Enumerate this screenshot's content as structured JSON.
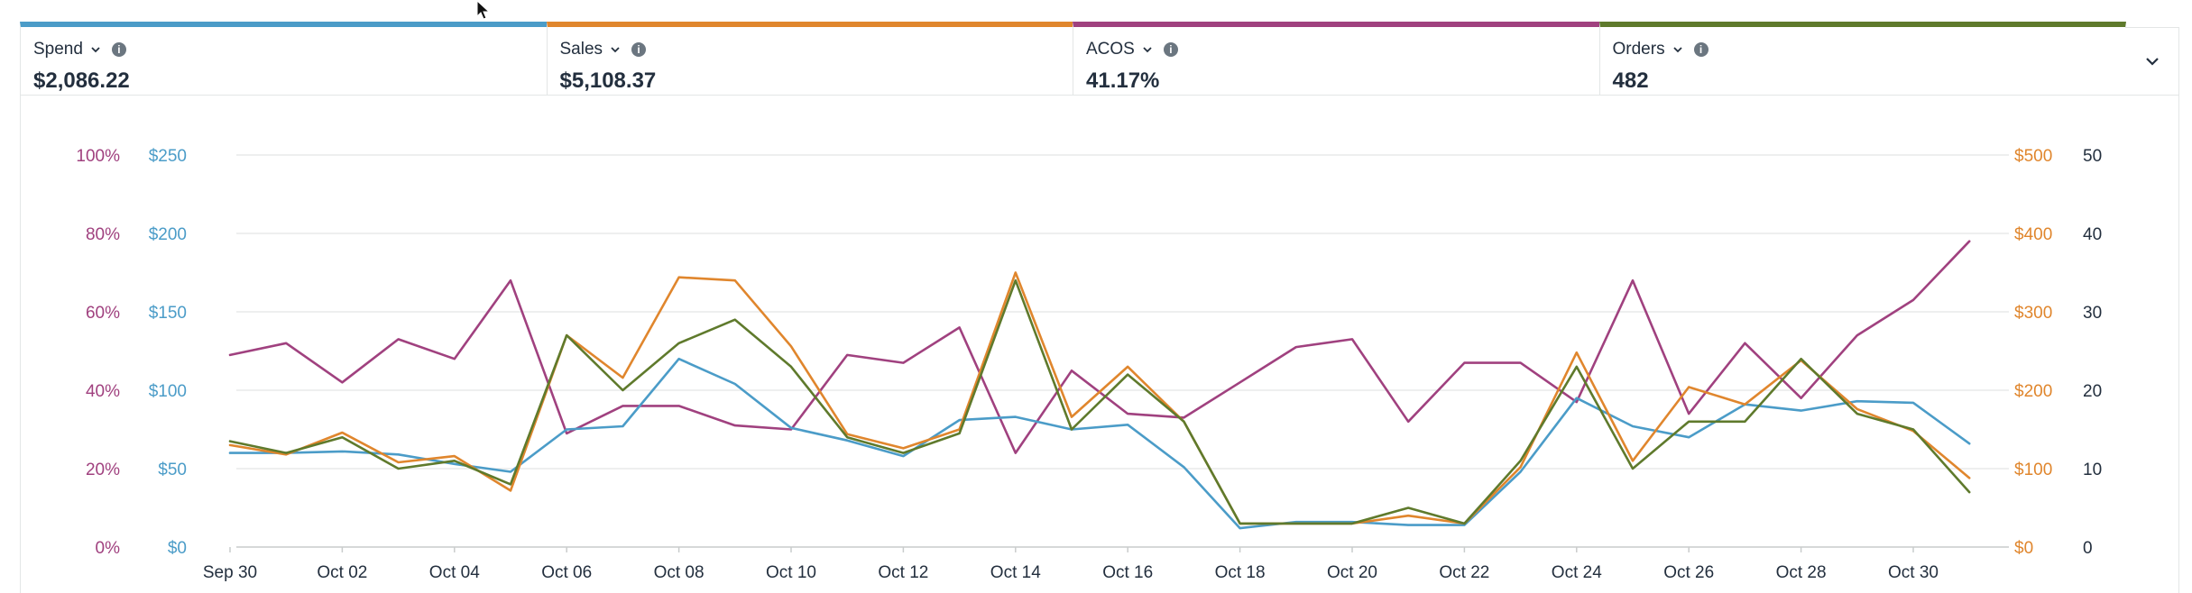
{
  "metrics": [
    {
      "label": "Spend",
      "value": "$2,086.22",
      "color": "#4b9cc8"
    },
    {
      "label": "Sales",
      "value": "$5,108.37",
      "color": "#e0862d"
    },
    {
      "label": "ACOS",
      "value": "41.17%",
      "color": "#a0417f"
    },
    {
      "label": "Orders",
      "value": "482",
      "color": "#5f7a2c"
    }
  ],
  "chart_data": {
    "type": "line",
    "x": [
      "Sep 30",
      "Oct 01",
      "Oct 02",
      "Oct 03",
      "Oct 04",
      "Oct 05",
      "Oct 06",
      "Oct 07",
      "Oct 08",
      "Oct 09",
      "Oct 10",
      "Oct 11",
      "Oct 12",
      "Oct 13",
      "Oct 14",
      "Oct 15",
      "Oct 16",
      "Oct 17",
      "Oct 18",
      "Oct 19",
      "Oct 20",
      "Oct 21",
      "Oct 22",
      "Oct 23",
      "Oct 24",
      "Oct 25",
      "Oct 26",
      "Oct 27",
      "Oct 28",
      "Oct 29",
      "Oct 30",
      "Oct 31"
    ],
    "x_tick_labels": [
      "Sep 30",
      "Oct 02",
      "Oct 04",
      "Oct 06",
      "Oct 08",
      "Oct 10",
      "Oct 12",
      "Oct 14",
      "Oct 16",
      "Oct 18",
      "Oct 20",
      "Oct 22",
      "Oct 24",
      "Oct 26",
      "Oct 28",
      "Oct 30"
    ],
    "axes": {
      "acos": {
        "ticks": [
          "0%",
          "20%",
          "40%",
          "60%",
          "80%",
          "100%"
        ],
        "range": [
          0,
          100
        ],
        "color": "#a0417f"
      },
      "spend": {
        "ticks": [
          "$0",
          "$50",
          "$100",
          "$150",
          "$200",
          "$250"
        ],
        "range": [
          0,
          250
        ],
        "color": "#4b9cc8"
      },
      "sales": {
        "ticks": [
          "$0",
          "$100",
          "$200",
          "$300",
          "$400",
          "$500"
        ],
        "range": [
          0,
          500
        ],
        "color": "#e0862d"
      },
      "orders": {
        "ticks": [
          "0",
          "10",
          "20",
          "30",
          "40",
          "50"
        ],
        "range": [
          0,
          50
        ],
        "color": "#232f3e"
      }
    },
    "series": [
      {
        "name": "ACOS",
        "axis": "acos",
        "color": "#a0417f",
        "values": [
          49,
          52,
          42,
          53,
          48,
          68,
          29,
          36,
          36,
          31,
          30,
          49,
          47,
          56,
          24,
          45,
          34,
          33,
          42,
          51,
          53,
          32,
          47,
          47,
          37,
          68,
          34,
          52,
          38,
          54,
          63,
          78
        ]
      },
      {
        "name": "Spend",
        "axis": "spend",
        "color": "#4b9cc8",
        "values": [
          60,
          60,
          61,
          59,
          53,
          48,
          75,
          77,
          120,
          104,
          76,
          68,
          58,
          81,
          83,
          75,
          78,
          51,
          12,
          16,
          16,
          14,
          14,
          48,
          95,
          77,
          70,
          91,
          87,
          93,
          92,
          66
        ]
      },
      {
        "name": "Sales",
        "axis": "sales",
        "color": "#e0862d",
        "values": [
          130,
          118,
          146,
          108,
          116,
          72,
          270,
          216,
          344,
          340,
          256,
          144,
          126,
          150,
          350,
          166,
          230,
          160,
          30,
          30,
          30,
          40,
          30,
          102,
          248,
          110,
          204,
          182,
          238,
          176,
          148,
          88
        ]
      },
      {
        "name": "Orders",
        "axis": "orders",
        "color": "#5f7a2c",
        "values": [
          13.5,
          12,
          14,
          10,
          11,
          8,
          27,
          20,
          26,
          29,
          23,
          14,
          12,
          14.5,
          34,
          15,
          22,
          16,
          3,
          3,
          3,
          5,
          3,
          11,
          23,
          10,
          16,
          16,
          24,
          17,
          15,
          7
        ]
      }
    ],
    "grid": true
  }
}
